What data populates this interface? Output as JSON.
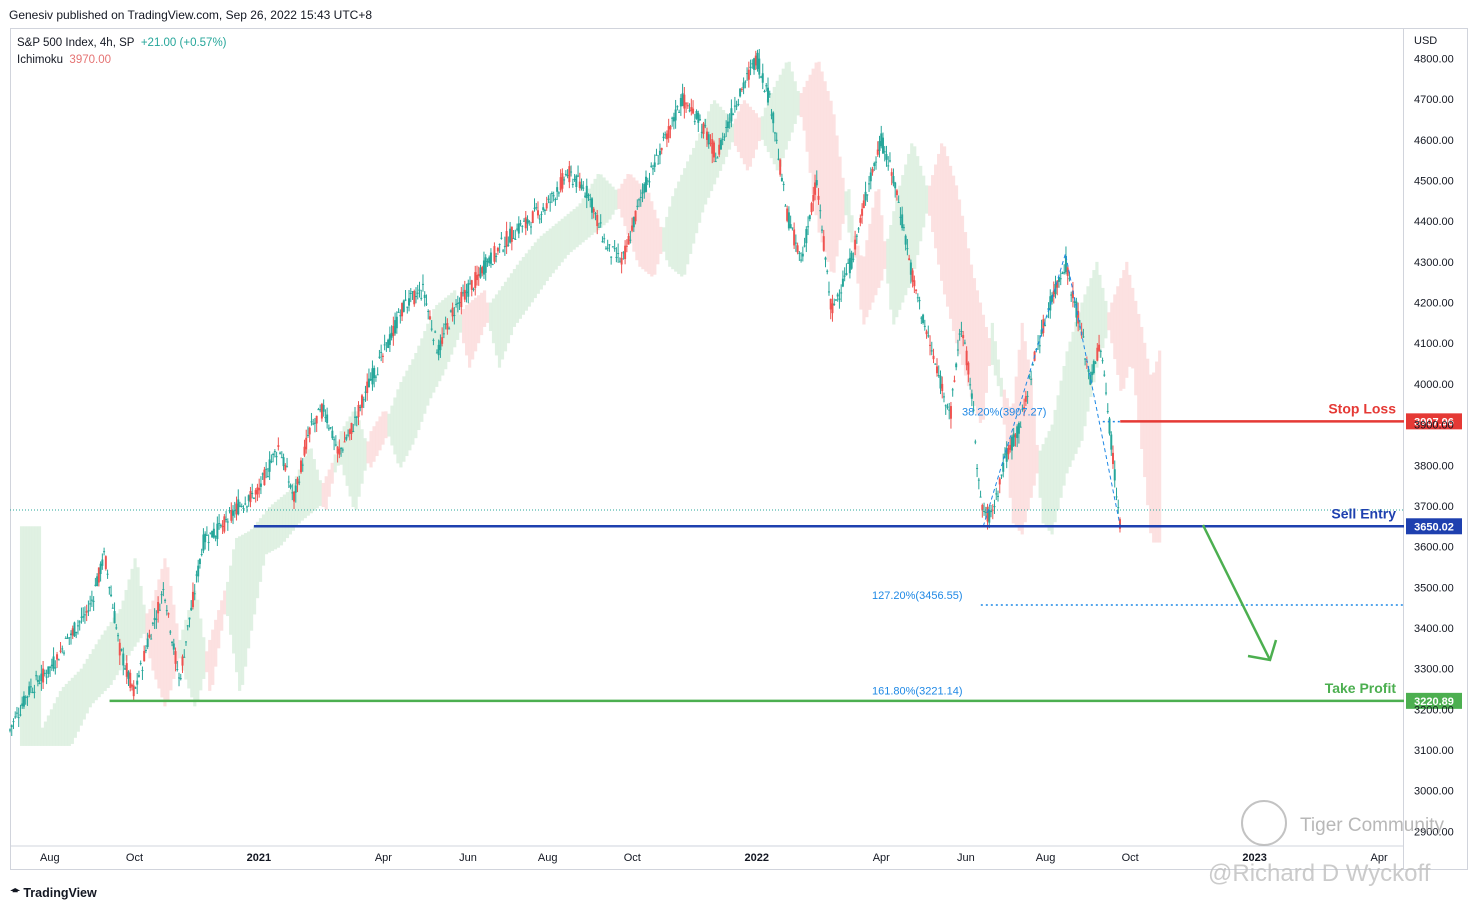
{
  "header": {
    "published": "Genesiv published on TradingView.com, Sep 26, 2022 15:43 UTC+8"
  },
  "legend": {
    "symbol": "S&P 500 Index, 4h, SP",
    "change": "+21.00 (+0.57%)",
    "indicator_name": "Ichimoku",
    "indicator_value": "3970.00"
  },
  "footer": {
    "brand": "TradingView",
    "brand_icon": "tradingview-logo-icon"
  },
  "watermarks": {
    "community": "Tiger Community",
    "author": "@Richard D Wyckoff"
  },
  "colors": {
    "stop_loss": "#e53935",
    "sell_entry": "#1e40af",
    "take_profit": "#4caf50",
    "fib": "#1e88e5",
    "candle_up": "#26a69a",
    "candle_down": "#ef5350",
    "cloud_bull": "#d8eedc",
    "cloud_bear": "#fbdada"
  },
  "chart_data": {
    "type": "line",
    "title": "S&P 500 Index, 4h, SP",
    "ylabel": "USD",
    "ylim": [
      2810,
      4870
    ],
    "x_ticks": [
      {
        "label": "Aug",
        "x": 2020.58
      },
      {
        "label": "Oct",
        "x": 2020.75
      },
      {
        "label": "2021",
        "x": 2021.0
      },
      {
        "label": "Apr",
        "x": 2021.25
      },
      {
        "label": "Jun",
        "x": 2021.42
      },
      {
        "label": "Aug",
        "x": 2021.58
      },
      {
        "label": "Oct",
        "x": 2021.75
      },
      {
        "label": "2022",
        "x": 2022.0
      },
      {
        "label": "Apr",
        "x": 2022.25
      },
      {
        "label": "Jun",
        "x": 2022.42
      },
      {
        "label": "Aug",
        "x": 2022.58
      },
      {
        "label": "Oct",
        "x": 2022.75
      },
      {
        "label": "2023",
        "x": 2023.0
      },
      {
        "label": "Apr",
        "x": 2023.25
      }
    ],
    "y_ticks": [
      "2900.00",
      "3000.00",
      "3100.00",
      "3200.00",
      "3300.00",
      "3400.00",
      "3500.00",
      "3600.00",
      "3700.00",
      "3800.00",
      "3900.00",
      "4000.00",
      "4100.00",
      "4200.00",
      "4300.00",
      "4400.00",
      "4500.00",
      "4600.00",
      "4700.00",
      "4800.00"
    ],
    "series": [
      {
        "name": "S&P 500 Index",
        "points": [
          [
            2020.5,
            3150
          ],
          [
            2020.54,
            3250
          ],
          [
            2020.58,
            3300
          ],
          [
            2020.62,
            3380
          ],
          [
            2020.66,
            3450
          ],
          [
            2020.69,
            3580
          ],
          [
            2020.72,
            3350
          ],
          [
            2020.75,
            3240
          ],
          [
            2020.78,
            3380
          ],
          [
            2020.81,
            3500
          ],
          [
            2020.84,
            3270
          ],
          [
            2020.86,
            3420
          ],
          [
            2020.89,
            3620
          ],
          [
            2020.92,
            3640
          ],
          [
            2020.96,
            3700
          ],
          [
            2021.0,
            3740
          ],
          [
            2021.04,
            3850
          ],
          [
            2021.07,
            3720
          ],
          [
            2021.1,
            3880
          ],
          [
            2021.13,
            3940
          ],
          [
            2021.16,
            3830
          ],
          [
            2021.19,
            3900
          ],
          [
            2021.22,
            4000
          ],
          [
            2021.25,
            4070
          ],
          [
            2021.29,
            4190
          ],
          [
            2021.33,
            4230
          ],
          [
            2021.36,
            4080
          ],
          [
            2021.39,
            4180
          ],
          [
            2021.42,
            4230
          ],
          [
            2021.46,
            4300
          ],
          [
            2021.5,
            4360
          ],
          [
            2021.54,
            4400
          ],
          [
            2021.58,
            4440
          ],
          [
            2021.62,
            4520
          ],
          [
            2021.66,
            4470
          ],
          [
            2021.7,
            4330
          ],
          [
            2021.73,
            4300
          ],
          [
            2021.77,
            4470
          ],
          [
            2021.81,
            4580
          ],
          [
            2021.85,
            4700
          ],
          [
            2021.88,
            4660
          ],
          [
            2021.92,
            4560
          ],
          [
            2021.96,
            4700
          ],
          [
            2022.0,
            4800
          ],
          [
            2022.03,
            4680
          ],
          [
            2022.06,
            4420
          ],
          [
            2022.09,
            4300
          ],
          [
            2022.12,
            4500
          ],
          [
            2022.15,
            4180
          ],
          [
            2022.19,
            4300
          ],
          [
            2022.22,
            4470
          ],
          [
            2022.25,
            4600
          ],
          [
            2022.28,
            4480
          ],
          [
            2022.31,
            4280
          ],
          [
            2022.34,
            4130
          ],
          [
            2022.37,
            4000
          ],
          [
            2022.39,
            3930
          ],
          [
            2022.41,
            4150
          ],
          [
            2022.43,
            4000
          ],
          [
            2022.45,
            3700
          ],
          [
            2022.47,
            3670
          ],
          [
            2022.5,
            3820
          ],
          [
            2022.53,
            3900
          ],
          [
            2022.56,
            4080
          ],
          [
            2022.59,
            4200
          ],
          [
            2022.62,
            4300
          ],
          [
            2022.65,
            4140
          ],
          [
            2022.67,
            4010
          ],
          [
            2022.69,
            4100
          ],
          [
            2022.71,
            3880
          ],
          [
            2022.73,
            3650
          ]
        ]
      }
    ],
    "levels": [
      {
        "label": "Stop Loss",
        "value": 3907.96,
        "value_label": "3907.96"
      },
      {
        "label": "Sell Entry",
        "value": 3650.02,
        "value_label": "3650.02"
      },
      {
        "label": "Take Profit",
        "value": 3220.89,
        "value_label": "3220.89"
      }
    ],
    "fib_labels": [
      {
        "text": "38.20%(3907.27)",
        "value": 3907.27
      },
      {
        "text": "127.20%(3456.55)",
        "value": 3456.55
      },
      {
        "text": "161.80%(3221.14)",
        "value": 3221.14
      }
    ],
    "current_price_line": 3690,
    "grid": false,
    "legend": "top-left"
  }
}
